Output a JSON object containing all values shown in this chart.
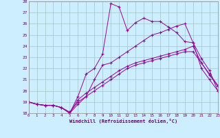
{
  "xlabel": "Windchill (Refroidissement éolien,°C)",
  "bg_color": "#cceeff",
  "grid_color": "#aacccc",
  "line_color": "#990099",
  "xlim": [
    0,
    23
  ],
  "ylim": [
    18,
    28
  ],
  "yticks": [
    18,
    19,
    20,
    21,
    22,
    23,
    24,
    25,
    26,
    27,
    28
  ],
  "xticks": [
    0,
    1,
    2,
    3,
    4,
    5,
    6,
    7,
    8,
    9,
    10,
    11,
    12,
    13,
    14,
    15,
    16,
    17,
    18,
    19,
    20,
    21,
    22,
    23
  ],
  "lines": [
    [
      19.0,
      18.8,
      18.7,
      18.7,
      18.5,
      18.0,
      19.5,
      21.5,
      22.0,
      23.3,
      27.8,
      27.5,
      25.4,
      26.1,
      26.5,
      26.2,
      26.2,
      25.7,
      25.2,
      24.4,
      24.3,
      22.9,
      21.8,
      20.0
    ],
    [
      19.0,
      18.8,
      18.7,
      18.7,
      18.5,
      18.0,
      18.8,
      19.5,
      21.0,
      22.3,
      22.5,
      23.0,
      23.5,
      24.0,
      24.5,
      25.0,
      25.2,
      25.5,
      25.8,
      26.0,
      24.3,
      22.0,
      21.0,
      20.0
    ],
    [
      19.0,
      18.8,
      18.7,
      18.7,
      18.5,
      18.0,
      19.2,
      19.8,
      20.3,
      20.8,
      21.3,
      21.8,
      22.2,
      22.5,
      22.7,
      22.9,
      23.1,
      23.3,
      23.5,
      23.7,
      24.0,
      22.5,
      21.5,
      20.5
    ],
    [
      19.0,
      18.8,
      18.7,
      18.7,
      18.5,
      18.1,
      19.0,
      19.5,
      20.0,
      20.5,
      21.0,
      21.5,
      22.0,
      22.3,
      22.5,
      22.7,
      22.9,
      23.1,
      23.3,
      23.5,
      23.5,
      22.5,
      21.4,
      20.4
    ]
  ]
}
